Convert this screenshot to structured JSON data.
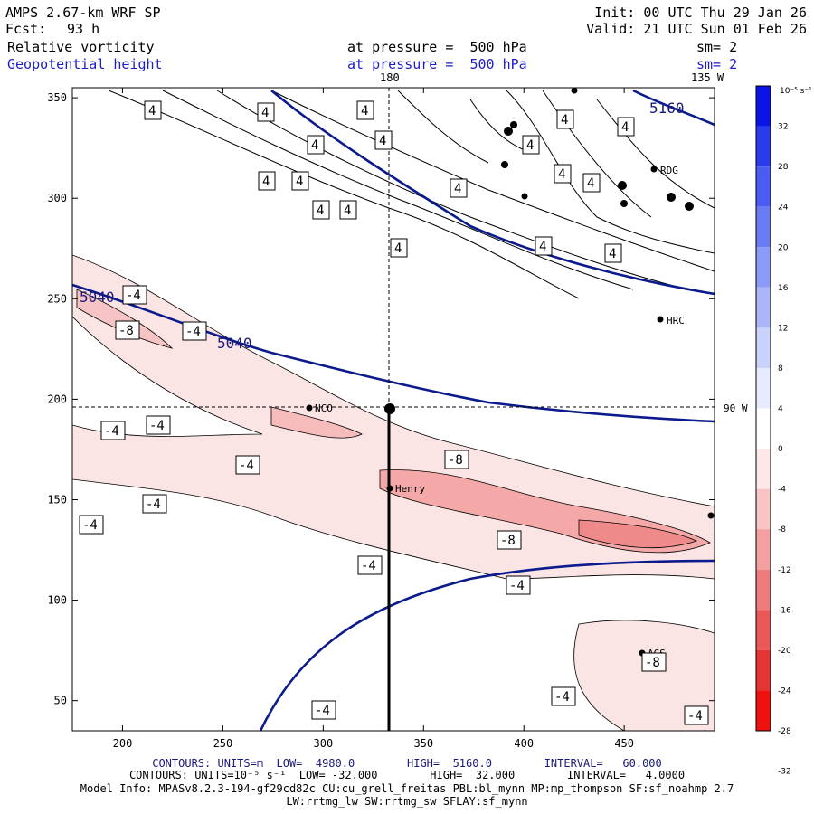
{
  "header": {
    "model": "AMPS 2.67-km WRF SP",
    "fcst_label": "Fcst:",
    "fcst_value": "93 h",
    "init": "Init: 00 UTC Thu 29 Jan 26",
    "valid": "Valid: 21 UTC Sun 01 Feb 26",
    "field1": "Relative vorticity",
    "field1_level": "at pressure =  500 hPa",
    "field1_sm": "sm= 2",
    "field2": "Geopotential height",
    "field2_level": "at pressure =  500 hPa",
    "field2_sm": "sm= 2"
  },
  "top_labels": {
    "lon180": "180",
    "lon135": "135 W"
  },
  "right_label": "90 W",
  "colorbar": {
    "unit": "10⁻⁵ s⁻¹",
    "ticks": [
      "32",
      "28",
      "24",
      "20",
      "16",
      "12",
      "8",
      "4",
      "0",
      "-4",
      "-8",
      "-12",
      "-16",
      "-20",
      "-24",
      "-28",
      "-32"
    ],
    "colors": [
      "#0a14e6",
      "#2a3aee",
      "#4a5cf2",
      "#6a7cf4",
      "#8a9af6",
      "#aab6f8",
      "#c8d2fa",
      "#e6ecfd",
      "#ffffff",
      "#fde8e8",
      "#f9c4c4",
      "#f4a0a0",
      "#ef7c7c",
      "#ea5858",
      "#e53434",
      "#f01010"
    ]
  },
  "stations": [
    "RDG",
    "HRC",
    "NCO",
    "Henry",
    "AGS"
  ],
  "chart_data": {
    "type": "heatmap",
    "xlim": [
      175,
      495
    ],
    "ylim": [
      35,
      355
    ],
    "x_ticks": [
      200,
      250,
      300,
      350,
      400,
      450
    ],
    "y_ticks": [
      50,
      100,
      150,
      200,
      250,
      300,
      350
    ],
    "height_contours": [
      {
        "label": "5040"
      },
      {
        "label": "5160"
      }
    ],
    "vorticity_labels": [
      "4",
      "-4",
      "-8"
    ],
    "section_line": {
      "x": 333,
      "y": [
        35,
        196
      ]
    },
    "crosshair": {
      "x": 333,
      "y": 196
    }
  },
  "footer": {
    "line1": "CONTOURS: UNITS=m  LOW=  4980.0        HIGH=  5160.0        INTERVAL=   60.000",
    "line2": "CONTOURS: UNITS=10⁻⁵ s⁻¹  LOW= -32.000        HIGH=  32.000        INTERVAL=   4.0000",
    "line3": "Model Info: MPASv8.2.3-194-gf29cd82c CU:cu_grell_freitas PBL:bl_mynn MP:mp_thompson SF:sf_noahmp 2.7",
    "line4": "LW:rrtmg_lw SW:rrtmg_sw SFLAY:sf_mynn"
  }
}
